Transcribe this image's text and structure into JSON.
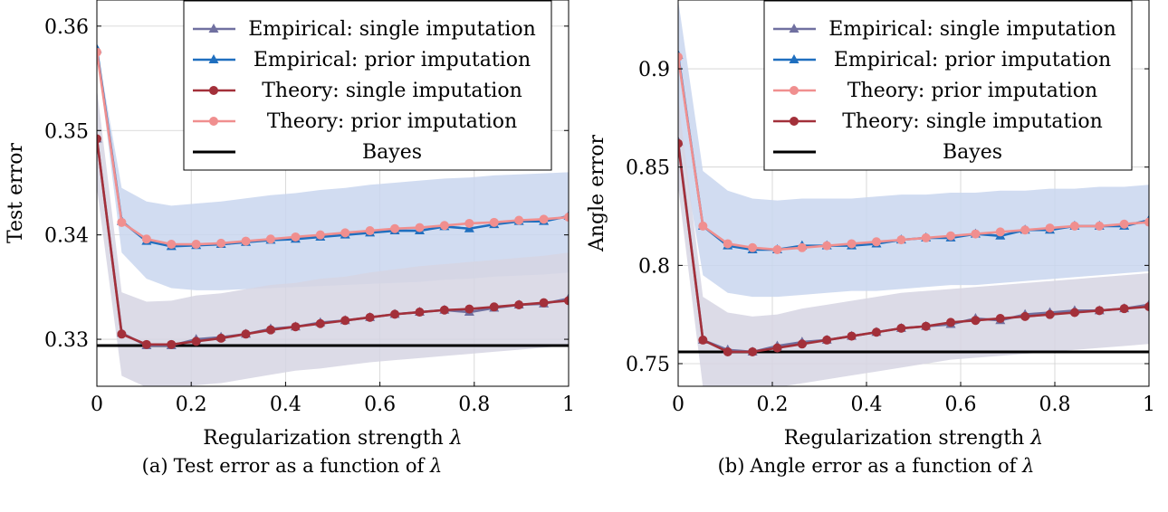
{
  "chart_data": [
    {
      "type": "line",
      "xlabel": "Regularization strength",
      "xlabel_symbol": "λ",
      "ylabel": "Test error",
      "xlim": [
        0,
        1
      ],
      "ylim": [
        0.3255,
        0.3625
      ],
      "x_ticks": [
        0,
        0.2,
        0.4,
        0.6,
        0.8,
        1
      ],
      "x_tick_labels": [
        "0",
        "0.2",
        "0.4",
        "0.6",
        "0.8",
        "1"
      ],
      "y_ticks": [
        0.33,
        0.34,
        0.35,
        0.36
      ],
      "y_tick_labels": [
        "0.33",
        "0.34",
        "0.35",
        "0.36"
      ],
      "grid": true,
      "legend_position": "top-right",
      "x": [
        0,
        0.0526,
        0.1053,
        0.1579,
        0.2105,
        0.2632,
        0.3158,
        0.3684,
        0.4211,
        0.4737,
        0.5263,
        0.5789,
        0.6316,
        0.6842,
        0.7368,
        0.7895,
        0.8421,
        0.8947,
        0.9474,
        1
      ],
      "series": [
        {
          "name": "Empirical: single imputation",
          "color": "#7070a0",
          "marker": "triangle",
          "values": [
            0.3492,
            0.3306,
            0.3294,
            0.3294,
            0.33,
            0.3302,
            0.3305,
            0.331,
            0.3312,
            0.3316,
            0.3318,
            0.3321,
            0.3324,
            0.3326,
            0.3328,
            0.3326,
            0.333,
            0.3333,
            0.3334,
            0.3339
          ]
        },
        {
          "name": "Empirical: prior imputation",
          "color": "#1f6fbf",
          "marker": "triangle",
          "values": [
            0.3578,
            0.3413,
            0.3394,
            0.3389,
            0.339,
            0.3391,
            0.3393,
            0.3395,
            0.3396,
            0.3398,
            0.34,
            0.3402,
            0.3404,
            0.3404,
            0.3408,
            0.3406,
            0.341,
            0.3413,
            0.3413,
            0.3418
          ]
        },
        {
          "name": "Theory: single imputation",
          "color": "#a3303a",
          "marker": "circle",
          "values": [
            0.3492,
            0.3305,
            0.3295,
            0.3295,
            0.3298,
            0.3301,
            0.3305,
            0.3309,
            0.3312,
            0.3315,
            0.3318,
            0.3321,
            0.3324,
            0.3326,
            0.3328,
            0.3329,
            0.3331,
            0.3333,
            0.3335,
            0.3337
          ]
        },
        {
          "name": "Theory: prior imputation",
          "color": "#f08f8f",
          "marker": "circle",
          "values": [
            0.3575,
            0.3412,
            0.3396,
            0.3391,
            0.3391,
            0.3392,
            0.3394,
            0.3396,
            0.3398,
            0.34,
            0.3402,
            0.3404,
            0.3406,
            0.3407,
            0.3409,
            0.3411,
            0.3412,
            0.3414,
            0.3415,
            0.3417
          ]
        },
        {
          "name": "Bayes",
          "color": "#000000",
          "marker": "none",
          "constant": 0.3294
        }
      ],
      "bands": [
        {
          "color": "#c9d6ee",
          "lower": [
            0.3575,
            0.3383,
            0.3358,
            0.3349,
            0.3347,
            0.3347,
            0.3348,
            0.3349,
            0.335,
            0.3351,
            0.3352,
            0.3353,
            0.3354,
            0.3355,
            0.3357,
            0.3358,
            0.336,
            0.3361,
            0.3362,
            0.3364
          ],
          "upper": [
            0.358,
            0.3445,
            0.3432,
            0.3428,
            0.343,
            0.3432,
            0.3435,
            0.3438,
            0.344,
            0.3443,
            0.3445,
            0.3448,
            0.345,
            0.3452,
            0.3454,
            0.3455,
            0.3457,
            0.3458,
            0.3459,
            0.346
          ]
        },
        {
          "color": "#d6d5e3",
          "lower": [
            0.3445,
            0.3265,
            0.3254,
            0.3252,
            0.3256,
            0.3258,
            0.3262,
            0.3266,
            0.327,
            0.3272,
            0.3275,
            0.3278,
            0.328,
            0.3282,
            0.3284,
            0.3286,
            0.3288,
            0.329,
            0.3292,
            0.3294
          ],
          "upper": [
            0.354,
            0.3345,
            0.3336,
            0.3337,
            0.3342,
            0.3344,
            0.3348,
            0.3352,
            0.3354,
            0.3358,
            0.336,
            0.3364,
            0.3367,
            0.337,
            0.3372,
            0.3374,
            0.3376,
            0.3378,
            0.338,
            0.3383
          ]
        }
      ]
    },
    {
      "type": "line",
      "xlabel": "Regularization strength",
      "xlabel_symbol": "λ",
      "ylabel": "Angle error",
      "xlim": [
        0,
        1
      ],
      "ylim": [
        0.7385,
        0.935
      ],
      "x_ticks": [
        0,
        0.2,
        0.4,
        0.6,
        0.8,
        1
      ],
      "x_tick_labels": [
        "0",
        "0.2",
        "0.4",
        "0.6",
        "0.8",
        "1"
      ],
      "y_ticks": [
        0.75,
        0.8,
        0.85,
        0.9
      ],
      "y_tick_labels": [
        "0.75",
        "0.8",
        "0.85",
        "0.9"
      ],
      "grid": true,
      "legend_position": "top-right",
      "x": [
        0,
        0.0526,
        0.1053,
        0.1579,
        0.2105,
        0.2632,
        0.3158,
        0.3684,
        0.4211,
        0.4737,
        0.5263,
        0.5789,
        0.6316,
        0.6842,
        0.7368,
        0.7895,
        0.8421,
        0.8947,
        0.9474,
        1
      ],
      "series": [
        {
          "name": "Empirical: single imputation",
          "color": "#7070a0",
          "marker": "triangle",
          "values": [
            0.863,
            0.762,
            0.757,
            0.756,
            0.759,
            0.761,
            0.762,
            0.764,
            0.766,
            0.768,
            0.769,
            0.77,
            0.773,
            0.772,
            0.775,
            0.776,
            0.777,
            0.777,
            0.778,
            0.78
          ]
        },
        {
          "name": "Empirical: prior imputation",
          "color": "#1f6fbf",
          "marker": "triangle",
          "values": [
            0.907,
            0.82,
            0.81,
            0.808,
            0.808,
            0.81,
            0.81,
            0.81,
            0.811,
            0.813,
            0.814,
            0.814,
            0.816,
            0.815,
            0.818,
            0.818,
            0.82,
            0.82,
            0.82,
            0.823
          ]
        },
        {
          "name": "Theory: prior imputation",
          "color": "#f08f8f",
          "marker": "circle",
          "values": [
            0.906,
            0.82,
            0.811,
            0.809,
            0.808,
            0.809,
            0.81,
            0.811,
            0.812,
            0.813,
            0.814,
            0.815,
            0.816,
            0.817,
            0.818,
            0.819,
            0.82,
            0.82,
            0.821,
            0.822
          ]
        },
        {
          "name": "Theory: single imputation",
          "color": "#a3303a",
          "marker": "circle",
          "values": [
            0.862,
            0.762,
            0.756,
            0.756,
            0.758,
            0.76,
            0.762,
            0.764,
            0.766,
            0.768,
            0.769,
            0.771,
            0.772,
            0.773,
            0.774,
            0.775,
            0.776,
            0.777,
            0.778,
            0.779
          ]
        },
        {
          "name": "Bayes",
          "color": "#000000",
          "marker": "none",
          "constant": 0.756
        }
      ],
      "bands": [
        {
          "color": "#c9d6ee",
          "lower": [
            0.87,
            0.795,
            0.786,
            0.784,
            0.784,
            0.785,
            0.786,
            0.787,
            0.787,
            0.788,
            0.789,
            0.79,
            0.79,
            0.791,
            0.792,
            0.793,
            0.794,
            0.795,
            0.796,
            0.797
          ],
          "upper": [
            0.935,
            0.848,
            0.838,
            0.834,
            0.833,
            0.834,
            0.834,
            0.834,
            0.835,
            0.836,
            0.836,
            0.837,
            0.837,
            0.838,
            0.838,
            0.839,
            0.839,
            0.84,
            0.84,
            0.841
          ]
        },
        {
          "color": "#d6d5e3",
          "lower": [
            0.84,
            0.738,
            0.738,
            0.738,
            0.738,
            0.74,
            0.742,
            0.744,
            0.746,
            0.748,
            0.75,
            0.752,
            0.753,
            0.754,
            0.755,
            0.756,
            0.757,
            0.758,
            0.759,
            0.76
          ],
          "upper": [
            0.885,
            0.784,
            0.776,
            0.774,
            0.775,
            0.778,
            0.78,
            0.782,
            0.784,
            0.786,
            0.787,
            0.788,
            0.789,
            0.79,
            0.791,
            0.792,
            0.793,
            0.794,
            0.795,
            0.796
          ]
        }
      ]
    }
  ],
  "captions": [
    {
      "tag": "(a)",
      "text": "Test error as a function of",
      "symbol": "λ"
    },
    {
      "tag": "(b)",
      "text": "Angle error as a function of",
      "symbol": "λ"
    }
  ]
}
